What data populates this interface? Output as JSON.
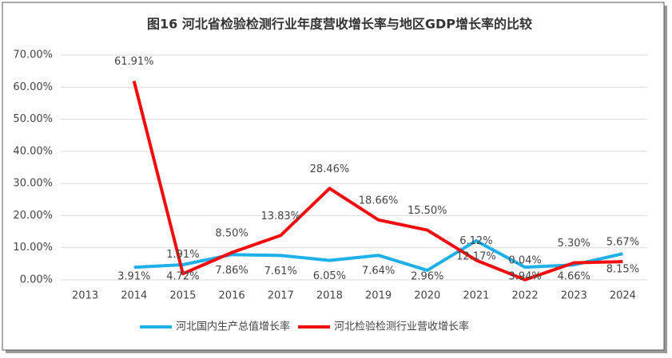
{
  "chart_data": {
    "type": "line",
    "title": "图16  河北省检验检测行业年度营收增长率与地区GDP增长率的比较",
    "categories": [
      "2013",
      "2014",
      "2015",
      "2016",
      "2017",
      "2018",
      "2019",
      "2020",
      "2021",
      "2022",
      "2023",
      "2024"
    ],
    "series": [
      {
        "name": "河北国内生产总值增长率",
        "color": "#1fb0e8",
        "values": [
          null,
          3.91,
          4.72,
          7.86,
          7.61,
          6.05,
          7.64,
          2.96,
          12.17,
          3.94,
          4.66,
          8.15
        ],
        "value_labels": [
          null,
          "3.91%",
          "4.72%",
          "7.86%",
          "7.61%",
          "6.05%",
          "7.64%",
          "2.96%",
          "12.17%",
          "3.94%",
          "4.66%",
          "8.15%"
        ]
      },
      {
        "name": "河北检验检测行业营收增长率",
        "color": "#f00d0d",
        "values": [
          null,
          61.91,
          1.91,
          8.5,
          13.83,
          28.46,
          18.66,
          15.5,
          6.12,
          0.04,
          5.3,
          5.67
        ],
        "value_labels": [
          null,
          "61.91%",
          "1.91%",
          "8.50%",
          "13.83%",
          "28.46%",
          "18.66%",
          "15.50%",
          "6.12%",
          "0.04%",
          "5.30%",
          "5.67%"
        ]
      }
    ],
    "ylim": [
      0,
      70
    ],
    "yticks": [
      {
        "value": 0,
        "label": "0.00%"
      },
      {
        "value": 10,
        "label": "10.00%"
      },
      {
        "value": 20,
        "label": "20.00%"
      },
      {
        "value": 30,
        "label": "30.00%"
      },
      {
        "value": 40,
        "label": "40.00%"
      },
      {
        "value": 50,
        "label": "50.00%"
      },
      {
        "value": 60,
        "label": "60.00%"
      },
      {
        "value": 70,
        "label": "70.00%"
      }
    ],
    "grid": true,
    "legend": "bottom"
  }
}
